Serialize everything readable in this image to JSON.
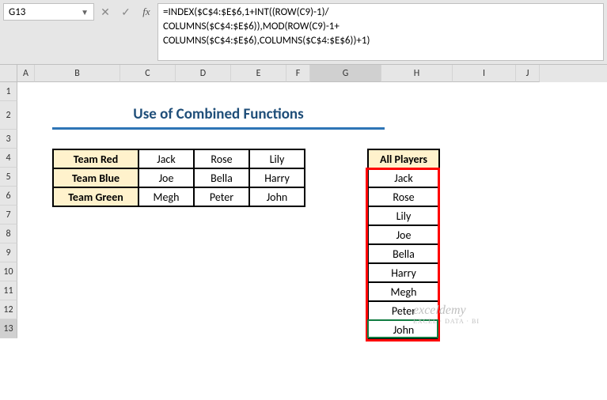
{
  "nameBox": "G13",
  "formula": "=INDEX($C$4:$E$6,1+INT((ROW(C9)-1)/\nCOLUMNS($C$4:$E$6)),MOD(ROW(C9)-1+\nCOLUMNS($C$4:$E$6),COLUMNS($C$4:$E$6))+1)",
  "title": "Use of Combined Functions",
  "columns": [
    "A",
    "B",
    "C",
    "D",
    "E",
    "F",
    "G",
    "H",
    "I",
    "J"
  ],
  "rows": [
    "1",
    "2",
    "3",
    "4",
    "5",
    "6",
    "7",
    "8",
    "9",
    "10",
    "11",
    "12",
    "13"
  ],
  "activeCol": "G",
  "activeRow": "13",
  "table": {
    "headers": [
      "Team Red",
      "Team Blue",
      "Team Green"
    ],
    "data": [
      [
        "Jack",
        "Rose",
        "Lily"
      ],
      [
        "Joe",
        "Bella",
        "Harry"
      ],
      [
        "Megh",
        "Peter",
        "John"
      ]
    ]
  },
  "allPlayers": {
    "header": "All Players",
    "values": [
      "Jack",
      "Rose",
      "Lily",
      "Joe",
      "Bella",
      "Harry",
      "Megh",
      "Peter",
      "John"
    ]
  },
  "watermark": {
    "main": "exceldemy",
    "sub": "EXCEL · DATA · BI"
  },
  "colors": {
    "headerBg": "#fff2cc",
    "titleColor": "#1f4e79",
    "titleUnderline": "#2e75b6",
    "highlight": "#ff0000",
    "selection": "#107c41"
  }
}
